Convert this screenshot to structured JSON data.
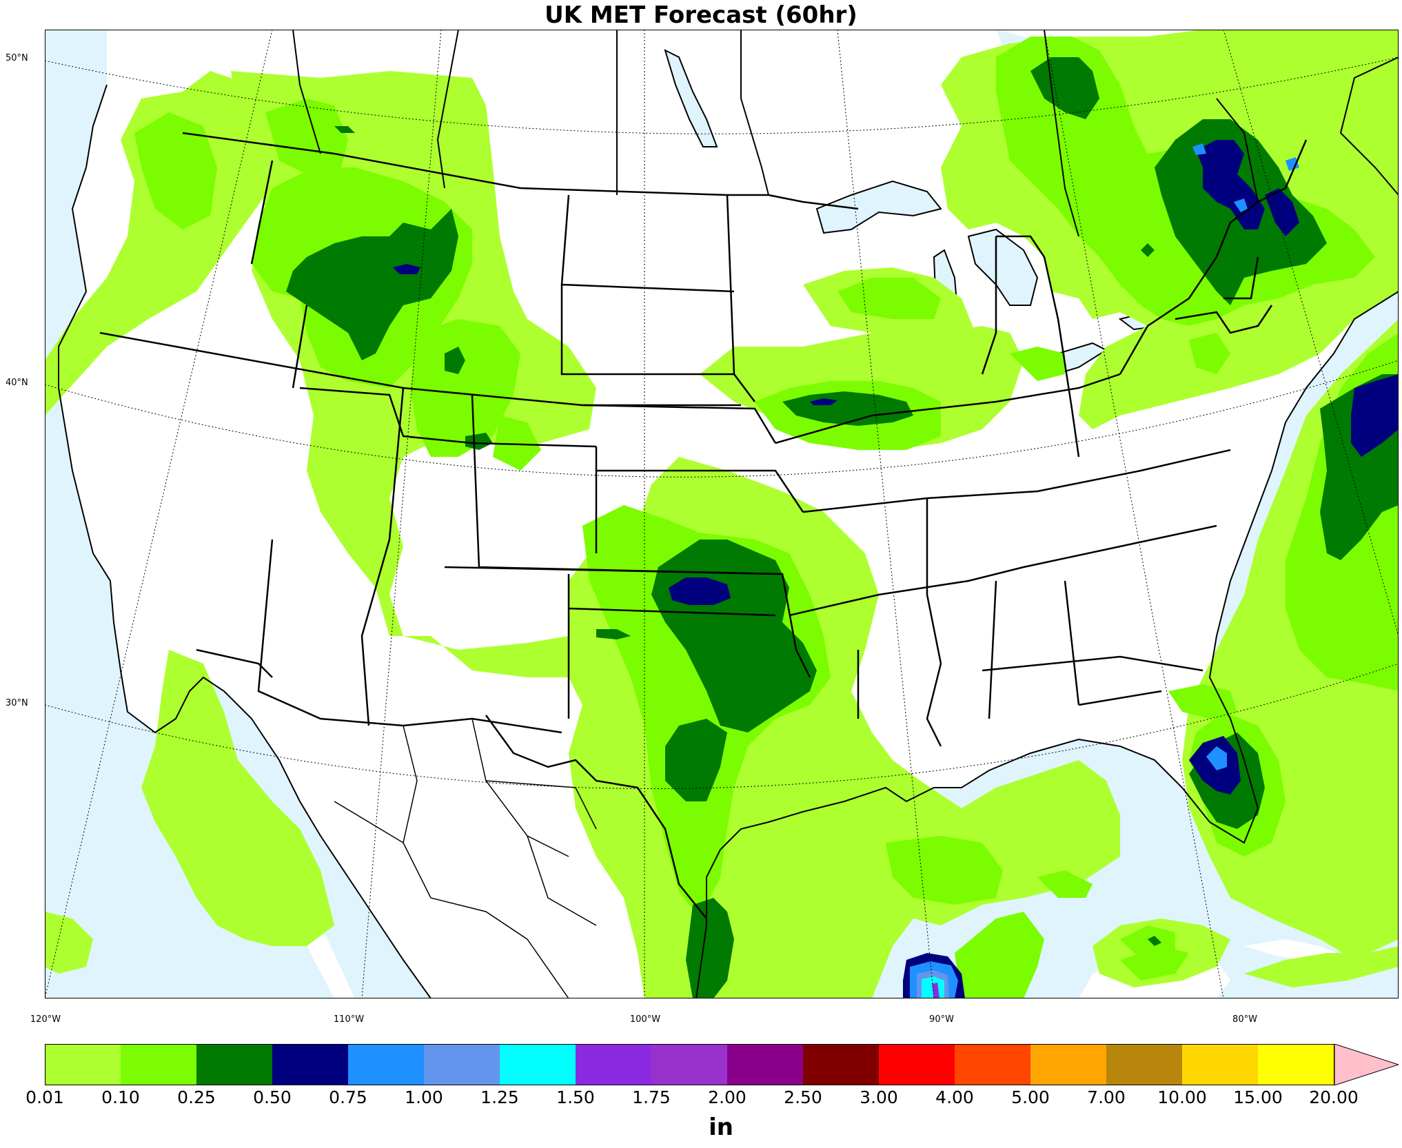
{
  "title": "UK MET Forecast (60hr)",
  "colorbar": {
    "unit": "in",
    "ticks": [
      "0.01",
      "0.10",
      "0.25",
      "0.50",
      "0.75",
      "1.00",
      "1.25",
      "1.50",
      "1.75",
      "2.00",
      "2.50",
      "3.00",
      "4.00",
      "5.00",
      "7.00",
      "10.00",
      "15.00",
      "20.00"
    ],
    "colors": [
      "#adff2f",
      "#7cfc00",
      "#007a00",
      "#00007f",
      "#1e90ff",
      "#6495ed",
      "#00ffff",
      "#8a2be2",
      "#9932cc",
      "#8b008b",
      "#800000",
      "#ff0000",
      "#ff4500",
      "#ffa500",
      "#b8860b",
      "#ffd700",
      "#ffff00"
    ],
    "extend_color": "#ffc0cb",
    "extend": "max"
  },
  "map": {
    "projection": "Lambert conformal, contiguous United States",
    "land_color": "#ffffff",
    "water_color": "#dff4fc",
    "lat_labels": [
      "50°N",
      "40°N",
      "30°N"
    ],
    "lon_labels": [
      "120°W",
      "110°W",
      "100°W",
      "90°W",
      "80°W"
    ],
    "precip_areas": [
      {
        "name": "Pacific Northwest / Northern Rockies",
        "max_level": "0.50-0.75"
      },
      {
        "name": "Southern Plains (Oklahoma / Texas)",
        "max_level": "0.50-0.75"
      },
      {
        "name": "Upper Midwest (Iowa)",
        "max_level": "0.50-0.75"
      },
      {
        "name": "Quebec / Northern New England",
        "max_level": "0.75-1.00"
      },
      {
        "name": "Western Atlantic offshore",
        "max_level": "0.50-0.75"
      },
      {
        "name": "Florida / Gulf Stream",
        "max_level": "0.75-1.00"
      },
      {
        "name": "Southern Gulf of Mexico",
        "max_level": "1.50-1.75"
      }
    ]
  }
}
